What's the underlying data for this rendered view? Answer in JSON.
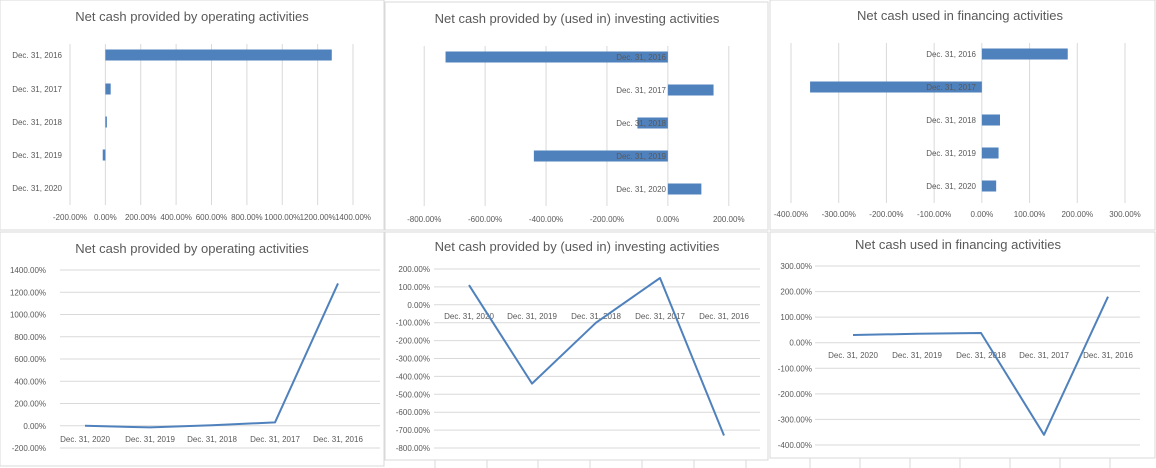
{
  "chart_data": [
    {
      "type": "bar",
      "orientation": "horizontal",
      "title": "Net cash provided by operating activities",
      "categories": [
        "Dec. 31, 2016",
        "Dec. 31, 2017",
        "Dec. 31, 2018",
        "Dec. 31, 2019",
        "Dec. 31, 2020"
      ],
      "values": [
        1280,
        30,
        5,
        -15,
        0
      ],
      "xlim": [
        -200,
        1400
      ],
      "ticks": [
        -200,
        0,
        200,
        400,
        600,
        800,
        1000,
        1200,
        1400
      ],
      "tick_labels": [
        "-200.00%",
        "0.00%",
        "200.00%",
        "400.00%",
        "600.00%",
        "800.00%",
        "1000.00%",
        "1200.00%",
        "1400.00%"
      ],
      "grid": true
    },
    {
      "type": "bar",
      "orientation": "horizontal",
      "title": "Net cash provided by (used in) investing activities",
      "categories": [
        "Dec. 31, 2016",
        "Dec. 31, 2017",
        "Dec. 31, 2018",
        "Dec. 31, 2019",
        "Dec. 31, 2020"
      ],
      "values": [
        -730,
        150,
        -100,
        -440,
        110
      ],
      "xlim": [
        -850,
        250
      ],
      "ticks": [
        -800,
        -600,
        -400,
        -200,
        0,
        200
      ],
      "tick_labels": [
        "-800.00%",
        "-600.00%",
        "-400.00%",
        "-200.00%",
        "0.00%",
        "200.00%"
      ],
      "grid": true
    },
    {
      "type": "bar",
      "orientation": "horizontal",
      "title": "Net cash used in financing activities",
      "categories": [
        "Dec. 31, 2016",
        "Dec. 31, 2017",
        "Dec. 31, 2018",
        "Dec. 31, 2019",
        "Dec. 31, 2020"
      ],
      "values": [
        180,
        -360,
        38,
        35,
        30
      ],
      "xlim": [
        -400,
        300
      ],
      "ticks": [
        -400,
        -300,
        -200,
        -100,
        0,
        100,
        200,
        300
      ],
      "tick_labels": [
        "-400.00%",
        "-300.00%",
        "-200.00%",
        "-100.00%",
        "0.00%",
        "100.00%",
        "200.00%",
        "300.00%"
      ],
      "grid": true
    },
    {
      "type": "line",
      "title": "Net cash provided by operating activities",
      "categories": [
        "Dec. 31, 2020",
        "Dec. 31, 2019",
        "Dec. 31, 2018",
        "Dec. 31, 2017",
        "Dec. 31, 2016"
      ],
      "values": [
        0,
        -15,
        5,
        30,
        1280
      ],
      "ylim": [
        -200,
        1400
      ],
      "ticks": [
        -200,
        0,
        200,
        400,
        600,
        800,
        1000,
        1200,
        1400
      ],
      "tick_labels": [
        "-200.00%",
        "0.00%",
        "200.00%",
        "400.00%",
        "600.00%",
        "800.00%",
        "1000.00%",
        "1200.00%",
        "1400.00%"
      ],
      "grid": true
    },
    {
      "type": "line",
      "title": "Net cash provided by (used in) investing activities",
      "categories": [
        "Dec. 31, 2020",
        "Dec. 31, 2019",
        "Dec. 31, 2018",
        "Dec. 31, 2017",
        "Dec. 31, 2016"
      ],
      "values": [
        110,
        -440,
        -100,
        150,
        -730
      ],
      "ylim": [
        -800,
        200
      ],
      "ticks": [
        -800,
        -700,
        -600,
        -500,
        -400,
        -300,
        -200,
        -100,
        0,
        100,
        200
      ],
      "tick_labels": [
        "-800.00%",
        "-700.00%",
        "-600.00%",
        "-500.00%",
        "-400.00%",
        "-300.00%",
        "-200.00%",
        "-100.00%",
        "0.00%",
        "100.00%",
        "200.00%"
      ],
      "grid": true
    },
    {
      "type": "line",
      "title": "Net cash used in financing activities",
      "categories": [
        "Dec. 31, 2020",
        "Dec. 31, 2019",
        "Dec. 31, 2018",
        "Dec. 31, 2017",
        "Dec. 31, 2016"
      ],
      "values": [
        30,
        35,
        38,
        -360,
        180
      ],
      "ylim": [
        -400,
        300
      ],
      "ticks": [
        -400,
        -300,
        -200,
        -100,
        0,
        100,
        200,
        300
      ],
      "tick_labels": [
        "-400.00%",
        "-300.00%",
        "-200.00%",
        "-100.00%",
        "0.00%",
        "100.00%",
        "200.00%",
        "300.00%"
      ],
      "grid": true
    }
  ],
  "colors": {
    "series": "#4f81bd",
    "grid": "#d9d9d9",
    "text": "#595959"
  }
}
